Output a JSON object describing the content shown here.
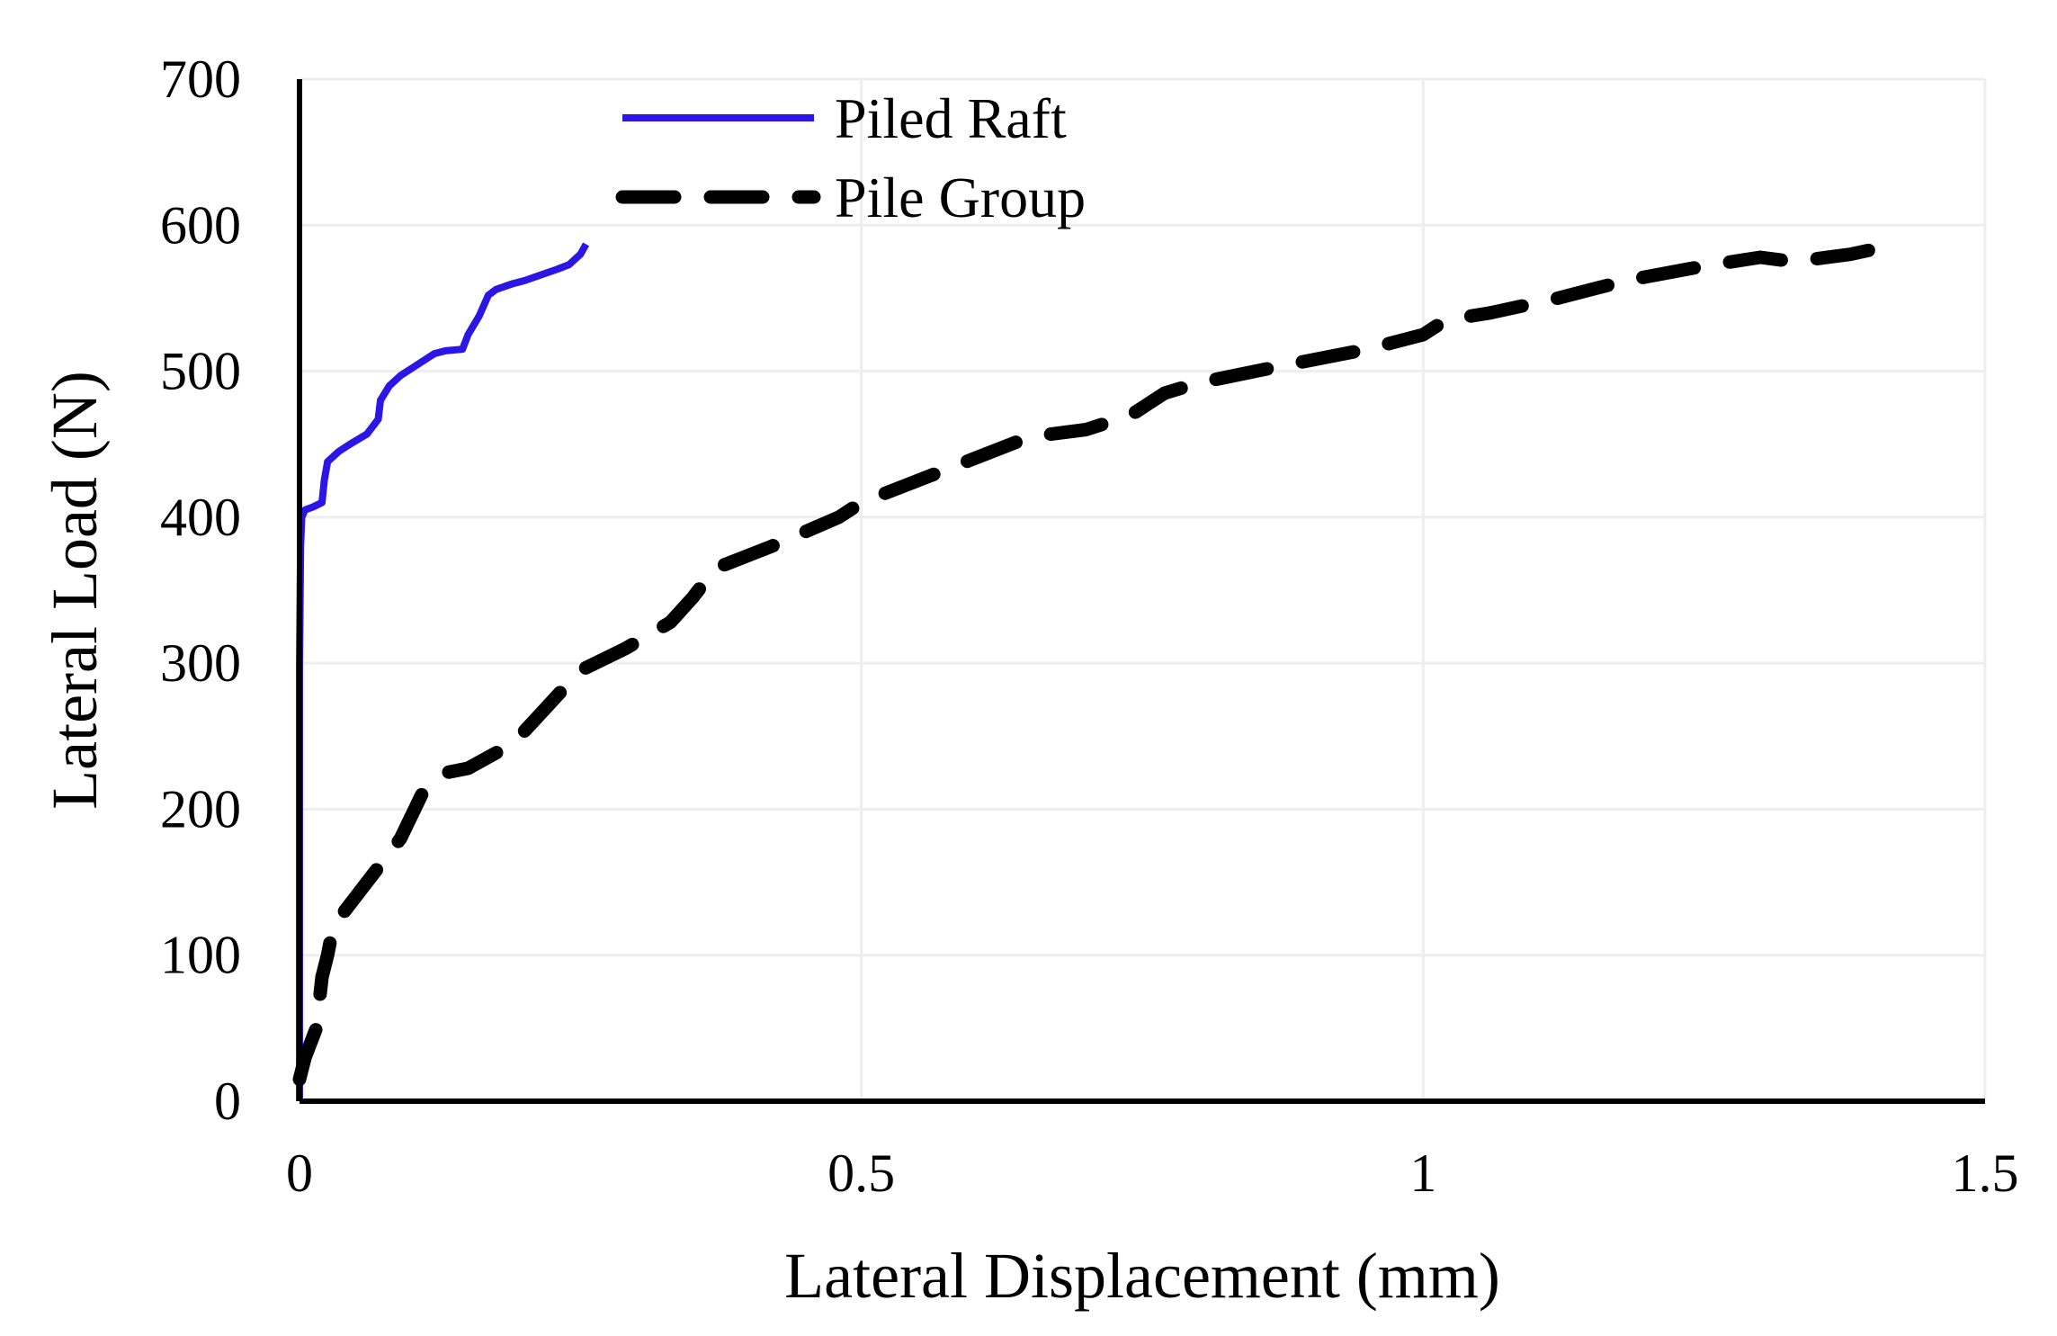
{
  "chart_data": {
    "type": "line",
    "title": "",
    "xlabel": "Lateral Displacement (mm)",
    "ylabel": "Lateral Load (N)",
    "xlim": [
      0,
      1.5
    ],
    "ylim": [
      0,
      700
    ],
    "x_ticks": [
      0,
      0.5,
      1,
      1.5
    ],
    "x_tick_labels": [
      "0",
      "0.5",
      "1",
      "1.5"
    ],
    "y_ticks": [
      0,
      100,
      200,
      300,
      400,
      500,
      600,
      700
    ],
    "y_tick_labels": [
      "0",
      "100",
      "200",
      "300",
      "400",
      "500",
      "600",
      "700"
    ],
    "grid": true,
    "legend_position": "top-left",
    "series": [
      {
        "name": "Piled Raft",
        "color": "#2b16e6",
        "style": "solid",
        "x": [
          0,
          0,
          0,
          0,
          0.001,
          0.002,
          0.005,
          0.012,
          0.02,
          0.022,
          0.025,
          0.035,
          0.045,
          0.06,
          0.07,
          0.072,
          0.08,
          0.09,
          0.1,
          0.11,
          0.12,
          0.13,
          0.145,
          0.15,
          0.16,
          0.168,
          0.175,
          0.19,
          0.2,
          0.215,
          0.23,
          0.24,
          0.25,
          0.255
        ],
        "y": [
          0,
          100,
          200,
          300,
          380,
          400,
          405,
          407,
          410,
          425,
          438,
          445,
          450,
          457,
          467,
          480,
          490,
          497,
          502,
          507,
          512,
          514,
          515,
          525,
          538,
          552,
          556,
          560,
          562,
          566,
          570,
          573,
          580,
          587
        ]
      },
      {
        "name": "Pile Group",
        "color": "#000000",
        "style": "dashed",
        "x": [
          0,
          0.005,
          0.015,
          0.02,
          0.025,
          0.03,
          0.035,
          0.05,
          0.07,
          0.09,
          0.11,
          0.13,
          0.15,
          0.19,
          0.22,
          0.25,
          0.29,
          0.33,
          0.35,
          0.37,
          0.42,
          0.48,
          0.5,
          0.55,
          0.6,
          0.65,
          0.7,
          0.74,
          0.77,
          0.8,
          0.87,
          0.95,
          1.0,
          1.02,
          1.06,
          1.12,
          1.18,
          1.25,
          1.3,
          1.33,
          1.38,
          1.41
        ],
        "y": [
          15,
          30,
          50,
          85,
          100,
          120,
          125,
          140,
          160,
          180,
          212,
          225,
          228,
          245,
          270,
          295,
          310,
          328,
          345,
          365,
          380,
          400,
          410,
          425,
          440,
          455,
          460,
          470,
          485,
          492,
          503,
          515,
          525,
          535,
          540,
          550,
          562,
          572,
          578,
          575,
          580,
          585
        ]
      }
    ]
  }
}
